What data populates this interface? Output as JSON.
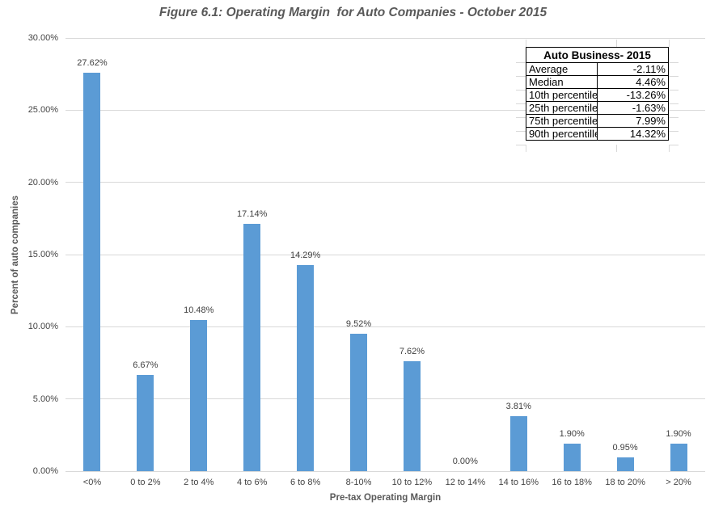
{
  "figure_title": "Figure 6.1: Operating Margin  for Auto Companies - October 2015",
  "chart_data": {
    "type": "bar",
    "title": "Figure 6.1: Operating Margin  for Auto Companies - October 2015",
    "categories": [
      "<0%",
      "0 to 2%",
      "2 to 4%",
      "4 to 6%",
      "6 to 8%",
      "8-10%",
      "10 to 12%",
      "12 to 14%",
      "14 to 16%",
      "16 to 18%",
      "18 to 20%",
      "> 20%"
    ],
    "values": [
      27.62,
      6.67,
      10.48,
      17.14,
      14.29,
      9.52,
      7.62,
      0.0,
      3.81,
      1.9,
      0.95,
      1.9
    ],
    "value_labels": [
      "27.62%",
      "6.67%",
      "10.48%",
      "17.14%",
      "14.29%",
      "9.52%",
      "7.62%",
      "0.00%",
      "3.81%",
      "1.90%",
      "0.95%",
      "1.90%"
    ],
    "xlabel": "Pre-tax Operating Margin",
    "ylabel": "Percent of auto companies",
    "ylim": [
      0,
      30
    ],
    "ytick_labels": [
      "0.00%",
      "5.00%",
      "10.00%",
      "15.00%",
      "20.00%",
      "25.00%",
      "30.00%"
    ],
    "grid": true,
    "legend_position": "none",
    "bar_color": "#5B9BD5",
    "gridline_color": "#D9D9D9"
  },
  "stats_table": {
    "header": "Auto Business- 2015",
    "rows": [
      {
        "label": "Average",
        "value": "-2.11%"
      },
      {
        "label": "Median",
        "value": "4.46%"
      },
      {
        "label": "10th percentile",
        "value": "-13.26%"
      },
      {
        "label": "25th percentile",
        "value": "-1.63%"
      },
      {
        "label": "75th percentile",
        "value": "7.99%"
      },
      {
        "label": "90th percentille",
        "value": "14.32%"
      }
    ]
  }
}
